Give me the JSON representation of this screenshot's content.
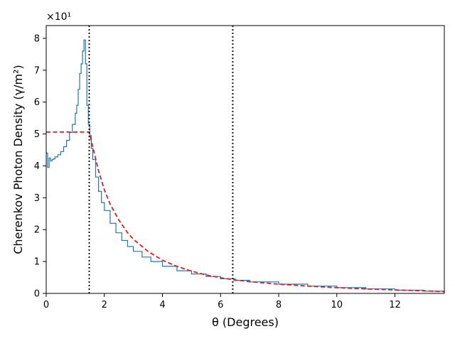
{
  "chart_data": {
    "type": "line",
    "xlabel": "θ (Degrees)",
    "ylabel": "Cherenkov Photon Density (γ/m²)",
    "y_offset_text": "×10¹",
    "xlim": [
      0,
      13.7
    ],
    "ylim": [
      0,
      8.4
    ],
    "x_ticks": [
      0,
      2,
      4,
      6,
      8,
      10,
      12
    ],
    "y_ticks": [
      0,
      1,
      2,
      3,
      4,
      5,
      6,
      7,
      8
    ],
    "grid": false,
    "vlines": [
      1.48,
      6.42
    ],
    "series": [
      {
        "kind": "histogram-step",
        "color": "#1f77b4",
        "x": [
          0.0,
          0.05,
          0.1,
          0.15,
          0.2,
          0.25,
          0.3,
          0.4,
          0.5,
          0.6,
          0.7,
          0.8,
          0.9,
          1.0,
          1.05,
          1.1,
          1.15,
          1.2,
          1.25,
          1.3,
          1.35,
          1.4,
          1.45,
          1.5,
          1.55,
          1.6,
          1.7,
          1.8,
          1.9,
          2.0,
          2.2,
          2.4,
          2.6,
          2.8,
          3.0,
          3.3,
          3.6,
          4.0,
          4.5,
          5.0,
          5.5,
          6.0,
          6.5,
          7.0,
          8.0,
          9.0,
          10.0,
          11.0,
          12.0,
          13.0,
          13.7
        ],
        "y": [
          4.4,
          3.95,
          4.25,
          4.15,
          4.2,
          4.22,
          4.28,
          4.35,
          4.45,
          4.6,
          4.8,
          5.05,
          5.3,
          5.65,
          5.9,
          6.4,
          6.9,
          7.2,
          7.6,
          7.95,
          7.2,
          5.9,
          5.3,
          4.95,
          4.55,
          4.2,
          3.65,
          3.2,
          2.85,
          2.6,
          2.2,
          1.9,
          1.66,
          1.47,
          1.32,
          1.14,
          1.0,
          0.85,
          0.71,
          0.61,
          0.53,
          0.46,
          0.41,
          0.36,
          0.29,
          0.23,
          0.18,
          0.14,
          0.1,
          0.07,
          0.06
        ]
      },
      {
        "kind": "fit",
        "color": "#e41a1c",
        "style": "dashed",
        "x": [
          0.0,
          1.48,
          1.6,
          1.8,
          2.0,
          2.2,
          2.5,
          2.8,
          3.0,
          3.5,
          4.0,
          4.5,
          5.0,
          5.5,
          6.0,
          6.5,
          7.0,
          8.0,
          9.0,
          10.0,
          11.0,
          12.0,
          13.0,
          13.7
        ],
        "y": [
          5.06,
          5.06,
          4.6,
          3.85,
          3.25,
          2.8,
          2.3,
          1.9,
          1.7,
          1.32,
          1.04,
          0.85,
          0.7,
          0.58,
          0.49,
          0.42,
          0.37,
          0.29,
          0.23,
          0.18,
          0.14,
          0.11,
          0.08,
          0.06
        ]
      }
    ]
  }
}
